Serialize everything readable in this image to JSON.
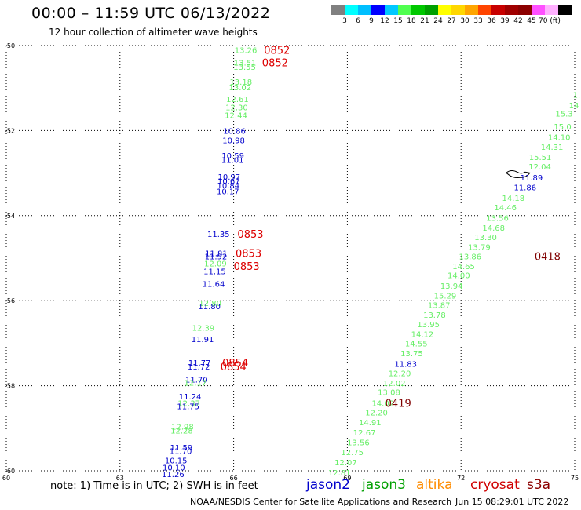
{
  "header": {
    "title": "00:00 – 11:59 UTC 06/13/2022",
    "subtitle": "12 hour collection of altimeter wave heights"
  },
  "legend": {
    "colors": [
      "#808080",
      "#00ffff",
      "#00bfff",
      "#0000ff",
      "#00c8ff",
      "#50ff50",
      "#00c800",
      "#00a000",
      "#ffff00",
      "#ffd700",
      "#ffa500",
      "#ff4500",
      "#c80000",
      "#a00000",
      "#8b0000",
      "#ff50ff",
      "#ffb0ff",
      "#000000"
    ],
    "labels": [
      "3",
      "6",
      "9",
      "12",
      "15",
      "18",
      "21",
      "24",
      "27",
      "30",
      "33",
      "36",
      "39",
      "42",
      "45",
      "70 (ft)"
    ]
  },
  "note": "note: 1) Time is in UTC; 2) SWH is in feet",
  "satellites": [
    {
      "name": "jason2",
      "color": "#0000cc"
    },
    {
      "name": "jason3",
      "color": "#00a000"
    },
    {
      "name": "altika",
      "color": "#ff8c00"
    },
    {
      "name": "cryosat",
      "color": "#d00000"
    },
    {
      "name": "s3a",
      "color": "#8b0000"
    }
  ],
  "footer": "NOAA/NESDIS Center for Satellite Applications and Research",
  "footer_date": "Jun 15 08:29:01 UTC 2022",
  "chart_data": {
    "type": "scatter",
    "title": "00:00 – 11:59 UTC 06/13/2022",
    "subtitle": "12 hour collection of altimeter wave heights",
    "xlabel": "",
    "ylabel": "",
    "xlim": [
      60,
      75
    ],
    "ylim": [
      -60,
      -50
    ],
    "x_ticks": [
      60,
      63,
      66,
      69,
      72,
      75
    ],
    "y_ticks": [
      -50,
      -52,
      -54,
      -56,
      -58,
      -60
    ],
    "grid": true,
    "colors": {
      "blue": "#0000cc",
      "green": "#66ee66",
      "red": "#dd0000",
      "darkred": "#800000"
    },
    "points": [
      {
        "lon": 66.32,
        "lat": -50.1,
        "text": "13.26",
        "c": "green"
      },
      {
        "lon": 66.3,
        "lat": -50.4,
        "text": "13.51",
        "c": "green"
      },
      {
        "lon": 66.29,
        "lat": -50.5,
        "text": "13.55",
        "c": "green"
      },
      {
        "lon": 66.19,
        "lat": -50.85,
        "text": "13.18",
        "c": "green"
      },
      {
        "lon": 66.17,
        "lat": -50.98,
        "text": "13.02",
        "c": "green"
      },
      {
        "lon": 66.1,
        "lat": -51.25,
        "text": "12.61",
        "c": "green"
      },
      {
        "lon": 66.08,
        "lat": -51.45,
        "text": "12.30",
        "c": "green"
      },
      {
        "lon": 66.06,
        "lat": -51.63,
        "text": "12.44",
        "c": "green"
      },
      {
        "lon": 66.02,
        "lat": -52.0,
        "text": "10.86",
        "c": "blue"
      },
      {
        "lon": 66.0,
        "lat": -52.22,
        "text": "10.98",
        "c": "blue"
      },
      {
        "lon": 65.98,
        "lat": -52.58,
        "text": "10.59",
        "c": "blue"
      },
      {
        "lon": 65.97,
        "lat": -52.68,
        "text": "11.01",
        "c": "blue"
      },
      {
        "lon": 65.88,
        "lat": -53.08,
        "text": "10.97",
        "c": "blue"
      },
      {
        "lon": 65.87,
        "lat": -53.18,
        "text": "10.67",
        "c": "blue"
      },
      {
        "lon": 65.86,
        "lat": -53.28,
        "text": "10.84",
        "c": "blue"
      },
      {
        "lon": 65.85,
        "lat": -53.42,
        "text": "10.17",
        "c": "blue"
      },
      {
        "lon": 65.6,
        "lat": -54.43,
        "text": "11.35",
        "c": "blue"
      },
      {
        "lon": 65.54,
        "lat": -54.88,
        "text": "11.81",
        "c": "blue"
      },
      {
        "lon": 65.53,
        "lat": -54.95,
        "text": "11.92",
        "c": "blue"
      },
      {
        "lon": 65.52,
        "lat": -55.12,
        "text": "12.09",
        "c": "green"
      },
      {
        "lon": 65.5,
        "lat": -55.3,
        "text": "11.15",
        "c": "blue"
      },
      {
        "lon": 65.47,
        "lat": -55.6,
        "text": "11.64",
        "c": "blue"
      },
      {
        "lon": 65.38,
        "lat": -56.05,
        "text": "12.80",
        "c": "green"
      },
      {
        "lon": 65.36,
        "lat": -56.13,
        "text": "11.80",
        "c": "blue"
      },
      {
        "lon": 65.2,
        "lat": -56.63,
        "text": "12.39",
        "c": "green"
      },
      {
        "lon": 65.18,
        "lat": -56.9,
        "text": "11.91",
        "c": "blue"
      },
      {
        "lon": 65.1,
        "lat": -57.45,
        "text": "11.77",
        "c": "blue"
      },
      {
        "lon": 65.08,
        "lat": -57.55,
        "text": "11.72",
        "c": "blue"
      },
      {
        "lon": 65.02,
        "lat": -57.85,
        "text": "11.70",
        "c": "blue"
      },
      {
        "lon": 64.99,
        "lat": -57.92,
        "text": "12.17",
        "c": "green"
      },
      {
        "lon": 64.85,
        "lat": -58.25,
        "text": "11.24",
        "c": "blue"
      },
      {
        "lon": 64.82,
        "lat": -58.4,
        "text": "12.37",
        "c": "green"
      },
      {
        "lon": 64.8,
        "lat": -58.48,
        "text": "11.75",
        "c": "blue"
      },
      {
        "lon": 64.65,
        "lat": -58.96,
        "text": "12.98",
        "c": "green"
      },
      {
        "lon": 64.63,
        "lat": -59.05,
        "text": "12.28",
        "c": "green"
      },
      {
        "lon": 64.62,
        "lat": -59.45,
        "text": "11.59",
        "c": "blue"
      },
      {
        "lon": 64.6,
        "lat": -59.53,
        "text": "11.70",
        "c": "blue"
      },
      {
        "lon": 64.48,
        "lat": -59.75,
        "text": "10.15",
        "c": "blue"
      },
      {
        "lon": 64.42,
        "lat": -59.92,
        "text": "10.10",
        "c": "blue"
      },
      {
        "lon": 64.4,
        "lat": -60.07,
        "text": "11.26",
        "c": "blue"
      },
      {
        "lon": 75.05,
        "lat": -51.15,
        "text": "1.",
        "c": "green"
      },
      {
        "lon": 74.98,
        "lat": -51.4,
        "text": "14",
        "c": "green"
      },
      {
        "lon": 74.72,
        "lat": -51.6,
        "text": "15.3",
        "c": "green"
      },
      {
        "lon": 74.68,
        "lat": -51.9,
        "text": "15.0",
        "c": "green"
      },
      {
        "lon": 74.59,
        "lat": -52.15,
        "text": "14.10",
        "c": "green"
      },
      {
        "lon": 74.4,
        "lat": -52.38,
        "text": "14.31",
        "c": "green"
      },
      {
        "lon": 74.09,
        "lat": -52.62,
        "text": "15.51",
        "c": "green"
      },
      {
        "lon": 74.08,
        "lat": -52.84,
        "text": "12.04",
        "c": "green"
      },
      {
        "lon": 73.86,
        "lat": -53.1,
        "text": "11.89",
        "c": "blue"
      },
      {
        "lon": 73.69,
        "lat": -53.33,
        "text": "11.86",
        "c": "blue"
      },
      {
        "lon": 73.38,
        "lat": -53.58,
        "text": "14.18",
        "c": "green"
      },
      {
        "lon": 73.17,
        "lat": -53.8,
        "text": "14.46",
        "c": "green"
      },
      {
        "lon": 72.96,
        "lat": -54.05,
        "text": "13.56",
        "c": "green"
      },
      {
        "lon": 72.86,
        "lat": -54.28,
        "text": "14.68",
        "c": "green"
      },
      {
        "lon": 72.65,
        "lat": -54.5,
        "text": "13.30",
        "c": "green"
      },
      {
        "lon": 72.48,
        "lat": -54.73,
        "text": "13.79",
        "c": "green"
      },
      {
        "lon": 72.24,
        "lat": -54.95,
        "text": "13.86",
        "c": "green"
      },
      {
        "lon": 72.07,
        "lat": -55.18,
        "text": "14.65",
        "c": "green"
      },
      {
        "lon": 71.94,
        "lat": -55.4,
        "text": "14.00",
        "c": "green"
      },
      {
        "lon": 71.75,
        "lat": -55.65,
        "text": "13.94",
        "c": "green"
      },
      {
        "lon": 71.58,
        "lat": -55.88,
        "text": "15.29",
        "c": "green"
      },
      {
        "lon": 71.42,
        "lat": -56.1,
        "text": "13.87",
        "c": "green"
      },
      {
        "lon": 71.3,
        "lat": -56.33,
        "text": "13.78",
        "c": "green"
      },
      {
        "lon": 71.14,
        "lat": -56.55,
        "text": "13.95",
        "c": "green"
      },
      {
        "lon": 70.98,
        "lat": -56.78,
        "text": "14.12",
        "c": "green"
      },
      {
        "lon": 70.82,
        "lat": -57.0,
        "text": "14.55",
        "c": "green"
      },
      {
        "lon": 70.7,
        "lat": -57.23,
        "text": "13.75",
        "c": "green"
      },
      {
        "lon": 70.54,
        "lat": -57.48,
        "text": "11.83",
        "c": "blue"
      },
      {
        "lon": 70.38,
        "lat": -57.7,
        "text": "12.20",
        "c": "green"
      },
      {
        "lon": 70.24,
        "lat": -57.93,
        "text": "12.02",
        "c": "green"
      },
      {
        "lon": 70.1,
        "lat": -58.15,
        "text": "13.08",
        "c": "green"
      },
      {
        "lon": 69.94,
        "lat": -58.4,
        "text": "14.02",
        "c": "green"
      },
      {
        "lon": 69.77,
        "lat": -58.63,
        "text": "12.20",
        "c": "green"
      },
      {
        "lon": 69.6,
        "lat": -58.86,
        "text": "14.91",
        "c": "green"
      },
      {
        "lon": 69.45,
        "lat": -59.1,
        "text": "12.67",
        "c": "green"
      },
      {
        "lon": 69.29,
        "lat": -59.33,
        "text": "13.56",
        "c": "green"
      },
      {
        "lon": 69.13,
        "lat": -59.56,
        "text": "12.75",
        "c": "green"
      },
      {
        "lon": 68.96,
        "lat": -59.8,
        "text": "12.07",
        "c": "green"
      },
      {
        "lon": 68.79,
        "lat": -60.04,
        "text": "12.81",
        "c": "green"
      }
    ],
    "time_labels": [
      {
        "lon": 66.8,
        "lat": -50.1,
        "text": "0852",
        "c": "red"
      },
      {
        "lon": 66.75,
        "lat": -50.4,
        "text": "0852",
        "c": "red"
      },
      {
        "lon": 66.1,
        "lat": -54.43,
        "text": "0853",
        "c": "red"
      },
      {
        "lon": 66.05,
        "lat": -54.88,
        "text": "0853",
        "c": "red"
      },
      {
        "lon": 66.0,
        "lat": -55.18,
        "text": "0853",
        "c": "red"
      },
      {
        "lon": 65.7,
        "lat": -57.45,
        "text": "0854",
        "c": "red"
      },
      {
        "lon": 65.65,
        "lat": -57.55,
        "text": "0854",
        "c": "red"
      },
      {
        "lon": 73.94,
        "lat": -54.95,
        "text": "0418",
        "c": "darkred"
      },
      {
        "lon": 70.0,
        "lat": -58.4,
        "text": "0419",
        "c": "darkred"
      }
    ]
  }
}
